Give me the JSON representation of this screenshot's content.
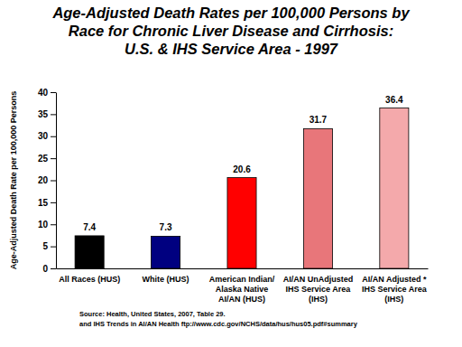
{
  "chart_data": {
    "type": "bar",
    "title": "Age-Adjusted Death Rates per 100,000 Persons by\nRace for Chronic Liver Disease and Cirrhosis:\nU.S. & IHS Service Area - 1997",
    "y_label": "Age-Adjusted Death Rate per 100,000 Persons",
    "categories": [
      "All Races (HUS)",
      "White (HUS)",
      "American Indian/ Alaska Native AI/AN (HUS)",
      "AI/AN UnAdjusted IHS Service Area (IHS)",
      "AI/AN Adjusted * IHS Service Area (IHS)"
    ],
    "values": [
      7.4,
      7.3,
      20.6,
      31.7,
      36.4
    ],
    "colors": [
      "#000000",
      "#000080",
      "#ff0000",
      "#e8767a",
      "#f4a9ab"
    ],
    "ylim": [
      0,
      40
    ],
    "yticks": [
      0,
      5,
      10,
      15,
      20,
      25,
      30,
      35,
      40
    ],
    "grid": false,
    "data_labels": true,
    "annotations": [
      "Source: Health, United States, 2007, Table 29.",
      "and IHS Trends in AI/AN Health ftp://www.cdc.gov/NCHS/data/hus/hus05.pdf#summary"
    ]
  }
}
